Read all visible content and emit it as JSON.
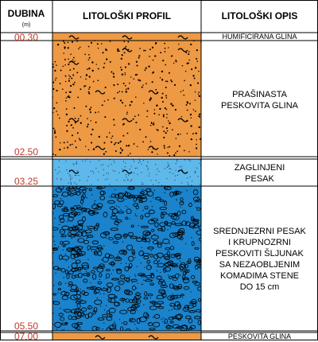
{
  "header": {
    "depth_title": "DUBINA",
    "depth_unit": "(m)",
    "profile_title": "LITOLOŠKI PROFIL",
    "description_title": "LITOLOŠKI OPIS"
  },
  "layers": [
    {
      "top_m": "00.30",
      "bottom_m": "",
      "pattern": "orange-clay",
      "color": "#ee9944",
      "description": [
        "HUMIFICIRANA GLINA"
      ]
    },
    {
      "top_m": "",
      "bottom_m": "02.50",
      "pattern": "orange-silt-sand",
      "color": "#ee9944",
      "description": [
        "PRAŠINASTA",
        "PESKOVITA GLINA"
      ]
    },
    {
      "top_m": "03.25",
      "bottom_m": "",
      "pattern": "light-blue-sand",
      "color": "#5eb8ea",
      "description": [
        "ZAGLINJENI",
        "PESAK"
      ]
    },
    {
      "top_m": "",
      "bottom_m": "05.50",
      "pattern": "blue-gravel",
      "color": "#1a83cc",
      "description": [
        "SREDNJEZRNI PESAK",
        "I KRUPNOZRNI",
        "PESKOVITI ŠLJUNAK",
        "SA NEZAOBLJENIM",
        "KOMADIMA STENE",
        "DO 15 cm"
      ]
    },
    {
      "top_m": "07.00",
      "bottom_m": "",
      "pattern": "orange-clay",
      "color": "#ee9944",
      "description": [
        "PESKOVITA GLINA"
      ]
    }
  ],
  "depth_labels": [
    "00.30",
    "02.50",
    "03.25",
    "05.50",
    "07.00"
  ]
}
